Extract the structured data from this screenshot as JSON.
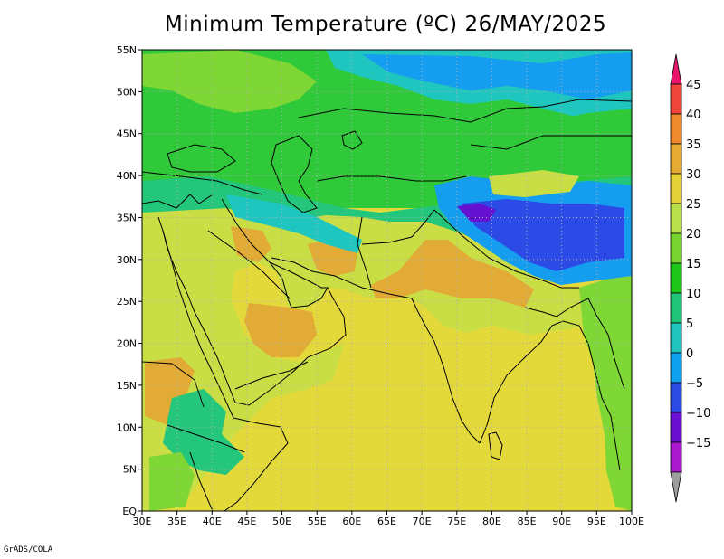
{
  "title": "Minimum Temperature (ºC) 26/MAY/2025",
  "credit": "GrADS/COLA",
  "axes": {
    "x_ticks": [
      "30E",
      "35E",
      "40E",
      "45E",
      "50E",
      "55E",
      "60E",
      "65E",
      "70E",
      "75E",
      "80E",
      "85E",
      "90E",
      "95E",
      "100E"
    ],
    "y_ticks": [
      "EQ",
      "5N",
      "10N",
      "15N",
      "20N",
      "25N",
      "30N",
      "35N",
      "40N",
      "45N",
      "50N",
      "55N"
    ]
  },
  "colorbar": {
    "labels": [
      "45",
      "40",
      "35",
      "30",
      "25",
      "20",
      "15",
      "10",
      "5",
      "0",
      "−5",
      "−10",
      "−15"
    ],
    "colors": [
      "#e8176d",
      "#f0453a",
      "#ef8a2f",
      "#e5aa33",
      "#e5d23b",
      "#b9e04a",
      "#79d431",
      "#1ec51b",
      "#22c47a",
      "#1fc5bd",
      "#10a2ee",
      "#2c4ae4",
      "#6a10d2",
      "#a919cc",
      "#9e9e9e"
    ]
  },
  "map": {
    "colors": {
      "ocean": "#e4d93b",
      "warm_land": "#e1ab36",
      "land_25": "#c9de45",
      "land_20": "#7ed734",
      "land_15": "#2fc93a",
      "land_10": "#24c67c",
      "land_5": "#1fc6bf",
      "land_0": "#159df0",
      "land_m5": "#2c4ae5",
      "land_m10": "#6512d0",
      "border": "#000000",
      "grid": "#b0b0b0"
    }
  }
}
